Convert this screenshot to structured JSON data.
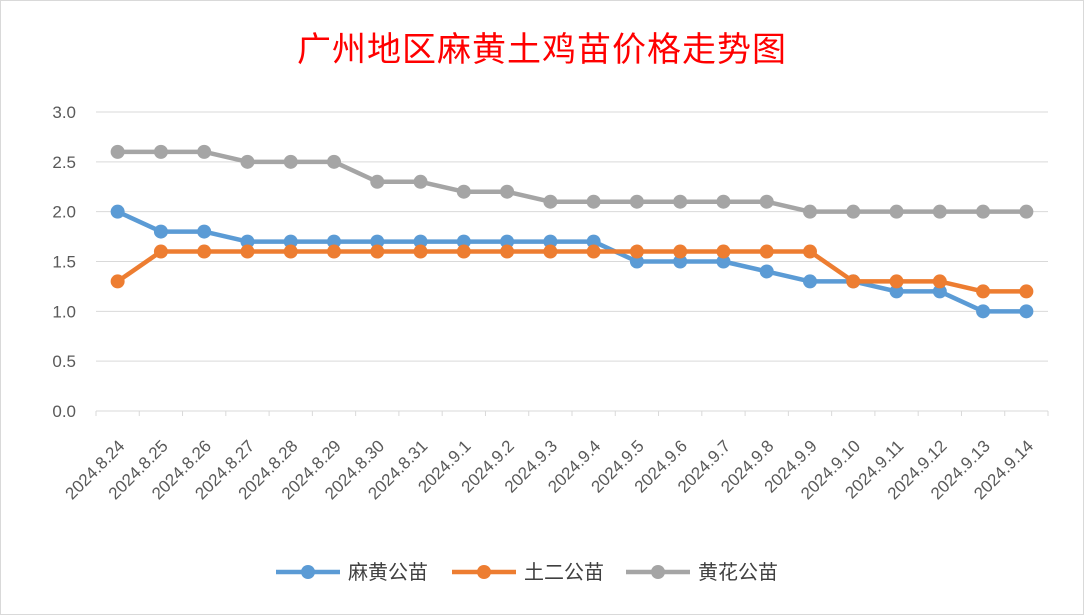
{
  "chart_data": {
    "type": "line",
    "title": "广州地区麻黄土鸡苗价格走势图",
    "xlabel": "",
    "ylabel": "",
    "ylim": [
      0,
      3.0
    ],
    "yticks": [
      "0.0",
      "0.5",
      "1.0",
      "1.5",
      "2.0",
      "2.5",
      "3.0"
    ],
    "grid": true,
    "legend_position": "bottom",
    "categories": [
      "2024.8.24",
      "2024.8.25",
      "2024.8.26",
      "2024.8.27",
      "2024.8.28",
      "2024.8.29",
      "2024.8.30",
      "2024.8.31",
      "2024.9.1",
      "2024.9.2",
      "2024.9.3",
      "2024.9.4",
      "2024.9.5",
      "2024.9.6",
      "2024.9.7",
      "2024.9.8",
      "2024.9.9",
      "2024.9.10",
      "2024.9.11",
      "2024.9.12",
      "2024.9.13",
      "2024.9.14"
    ],
    "series": [
      {
        "name": "麻黄公苗",
        "color": "#5b9bd5",
        "values": [
          2.0,
          1.8,
          1.8,
          1.7,
          1.7,
          1.7,
          1.7,
          1.7,
          1.7,
          1.7,
          1.7,
          1.7,
          1.5,
          1.5,
          1.5,
          1.4,
          1.3,
          1.3,
          1.2,
          1.2,
          1.0,
          1.0
        ]
      },
      {
        "name": "土二公苗",
        "color": "#ed7d31",
        "values": [
          1.3,
          1.6,
          1.6,
          1.6,
          1.6,
          1.6,
          1.6,
          1.6,
          1.6,
          1.6,
          1.6,
          1.6,
          1.6,
          1.6,
          1.6,
          1.6,
          1.6,
          1.3,
          1.3,
          1.3,
          1.2,
          1.2
        ]
      },
      {
        "name": "黄花公苗",
        "color": "#a5a5a5",
        "values": [
          2.6,
          2.6,
          2.6,
          2.5,
          2.5,
          2.5,
          2.3,
          2.3,
          2.2,
          2.2,
          2.1,
          2.1,
          2.1,
          2.1,
          2.1,
          2.1,
          2.0,
          2.0,
          2.0,
          2.0,
          2.0,
          2.0
        ]
      }
    ]
  }
}
